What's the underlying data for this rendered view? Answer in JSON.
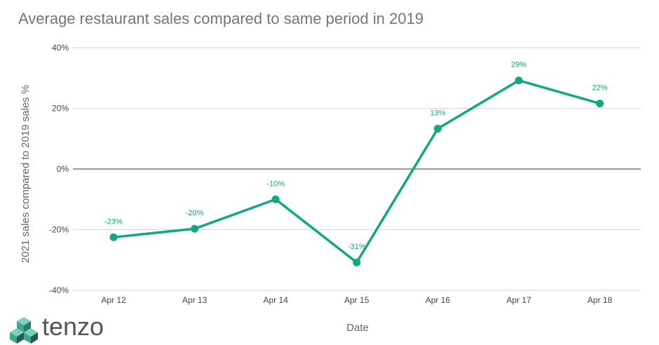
{
  "chart_data": {
    "type": "line",
    "title": "Average restaurant sales compared to same period in 2019",
    "xlabel": "Date",
    "ylabel": "2021 sales compared to 2019 sales %",
    "categories": [
      "Apr 12",
      "Apr 13",
      "Apr 14",
      "Apr 15",
      "Apr 16",
      "Apr 17",
      "Apr 18"
    ],
    "series": [
      {
        "values": [
          -22.5,
          -19.7,
          -10.0,
          -30.8,
          13.3,
          29.2,
          21.6
        ],
        "labels": [
          "-23%",
          "-20%",
          "-10%",
          "-31%",
          "13%",
          "29%",
          "22%"
        ]
      }
    ],
    "ylim": [
      -40,
      40
    ],
    "yticks": [
      40,
      20,
      0,
      -20,
      -40
    ],
    "ytick_labels": [
      "40%",
      "20%",
      "0%",
      "-20%",
      "-40%"
    ],
    "grid": true,
    "legend": "none",
    "colors": {
      "line": "#12a880",
      "label": "#12a880",
      "grid": "#d6d6d6",
      "zero": "#333333"
    }
  },
  "logo": {
    "text": "tenzo",
    "colors": [
      "#2a7a6b",
      "#3aa88c",
      "#7fcfb8",
      "#1f5e54"
    ]
  }
}
